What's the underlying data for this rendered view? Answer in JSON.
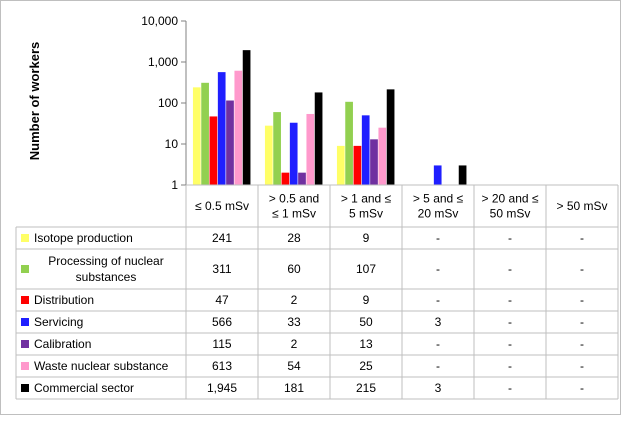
{
  "chart_data": {
    "type": "bar",
    "scale": "log",
    "ylabel": "Number of workers",
    "ylim": [
      1,
      10000
    ],
    "y_ticks": [
      "1",
      "10",
      "100",
      "1,000",
      "10,000"
    ],
    "grid": false,
    "legend": "table-left",
    "categories": [
      [
        "≤ 0.5 mSv"
      ],
      [
        "> 0.5 and",
        "≤ 1 mSv"
      ],
      [
        "> 1 and ≤",
        "5 mSv"
      ],
      [
        "> 5 and ≤",
        "20 mSv"
      ],
      [
        "> 20 and ≤",
        "50 mSv"
      ],
      [
        "> 50 mSv"
      ]
    ],
    "series": [
      {
        "name": "Isotope production",
        "color": "#ffff66",
        "values": [
          241,
          28,
          9,
          null,
          null,
          null
        ],
        "labels": [
          "241",
          "28",
          "9",
          "-",
          "-",
          "-"
        ]
      },
      {
        "name": "Processing of nuclear substances",
        "name_lines": [
          "Processing of nuclear",
          "substances"
        ],
        "color": "#92d050",
        "values": [
          311,
          60,
          107,
          null,
          null,
          null
        ],
        "labels": [
          "311",
          "60",
          "107",
          "-",
          "-",
          "-"
        ]
      },
      {
        "name": "Distribution",
        "color": "#ff0000",
        "values": [
          47,
          2,
          9,
          null,
          null,
          null
        ],
        "labels": [
          "47",
          "2",
          "9",
          "-",
          "-",
          "-"
        ]
      },
      {
        "name": "Servicing",
        "color": "#1f1fff",
        "values": [
          566,
          33,
          50,
          3,
          null,
          null
        ],
        "labels": [
          "566",
          "33",
          "50",
          "3",
          "-",
          "-"
        ]
      },
      {
        "name": "Calibration",
        "color": "#7030a0",
        "values": [
          115,
          2,
          13,
          null,
          null,
          null
        ],
        "labels": [
          "115",
          "2",
          "13",
          "-",
          "-",
          "-"
        ]
      },
      {
        "name": "Waste nuclear substance",
        "color": "#ff99cc",
        "values": [
          613,
          54,
          25,
          null,
          null,
          null
        ],
        "labels": [
          "613",
          "54",
          "25",
          "-",
          "-",
          "-"
        ]
      },
      {
        "name": "Commercial sector",
        "color": "#000000",
        "values": [
          1945,
          181,
          215,
          3,
          null,
          null
        ],
        "labels": [
          "1,945",
          "181",
          "215",
          "3",
          "-",
          "-"
        ]
      }
    ]
  }
}
